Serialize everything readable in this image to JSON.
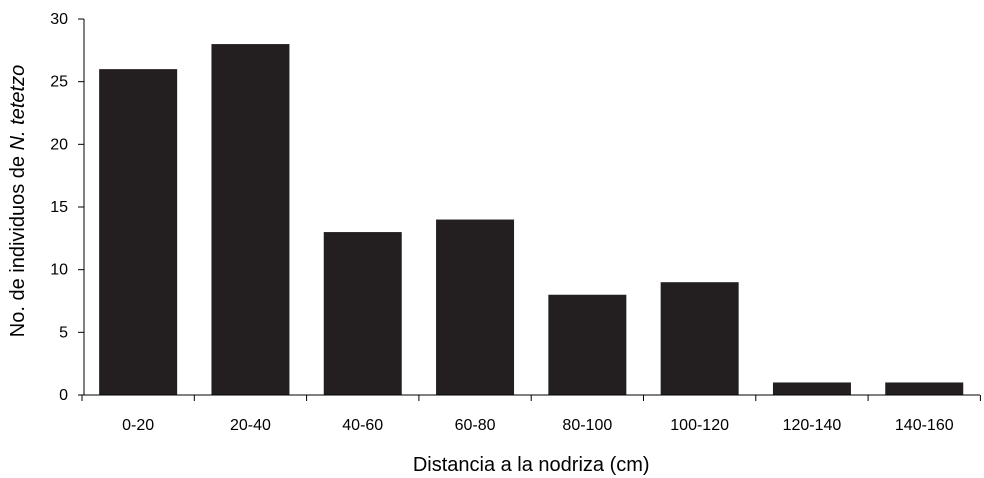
{
  "chart_data": {
    "type": "bar",
    "title": "",
    "xlabel": "Distancia a la nodriza (cm)",
    "ylabel": {
      "prefix": "No. de individuos de ",
      "italic": "N. tetetzo"
    },
    "categories": [
      "0-20",
      "20-40",
      "40-60",
      "60-80",
      "80-100",
      "100-120",
      "120-140",
      "140-160"
    ],
    "values": [
      26,
      28,
      13,
      14,
      8,
      9,
      1,
      1
    ],
    "ylim": [
      0,
      30
    ],
    "yticks": [
      0,
      5,
      10,
      15,
      20,
      25,
      30
    ],
    "grid": false,
    "legend": "none",
    "bar_color": "#231f20",
    "axis_color": "#000000"
  }
}
